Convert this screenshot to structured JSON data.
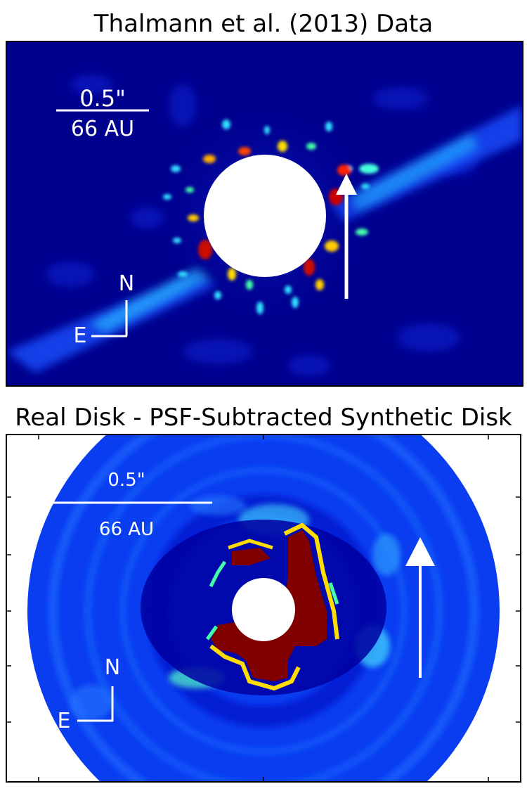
{
  "top_panel": {
    "title": "Thalmann et al. (2013) Data",
    "scale_bar": {
      "angular": "0.5\"",
      "physical": "66 AU"
    },
    "compass": {
      "north": "N",
      "east": "E"
    }
  },
  "bottom_panel": {
    "title": "Real Disk - PSF-Subtracted Synthetic Disk",
    "scale_bar": {
      "angular": "0.5\"",
      "physical": "66 AU"
    },
    "compass": {
      "north": "N",
      "east": "E"
    }
  },
  "colormap": [
    "#00008f",
    "#0000ff",
    "#00ffff",
    "#ffff00",
    "#ff0000",
    "#800000"
  ]
}
